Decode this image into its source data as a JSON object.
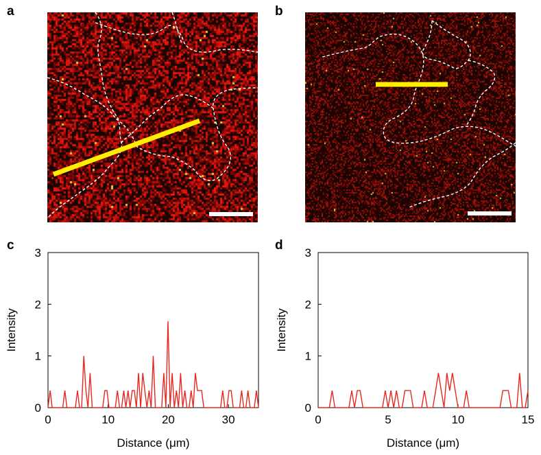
{
  "figure": {
    "panels": {
      "a": {
        "letter": "a"
      },
      "b": {
        "letter": "b"
      },
      "c": {
        "letter": "c"
      },
      "d": {
        "letter": "d"
      }
    }
  },
  "colors": {
    "image_background": "#1a0503",
    "image_signal": "#d0160c",
    "image_highlight": "#e8d040",
    "profile_line": "#ffee00",
    "scale_bar": "#ffffff",
    "boundary_dash": "#ffffff",
    "plot_line": "#e8261f",
    "axis": "#000000"
  },
  "chart_data": [
    {
      "panel": "c",
      "type": "line",
      "xlabel": "Distance (μm)",
      "ylabel": "Intensity",
      "xlim": [
        0,
        35
      ],
      "ylim": [
        0,
        3
      ],
      "xticks": [
        0,
        10,
        20,
        30
      ],
      "yticks": [
        0,
        1,
        2,
        3
      ],
      "grid": false,
      "series": [
        {
          "color": "#e8261f",
          "x": [
            0,
            0.35,
            0.7,
            1.05,
            1.4,
            1.75,
            2.1,
            2.45,
            2.8,
            3.15,
            3.5,
            3.85,
            4.2,
            4.55,
            4.9,
            5.25,
            5.6,
            5.95,
            6.3,
            6.65,
            7,
            7.35,
            7.7,
            8.05,
            8.4,
            8.75,
            9.1,
            9.45,
            9.8,
            10.15,
            10.5,
            10.85,
            11.2,
            11.55,
            11.9,
            12.25,
            12.6,
            12.95,
            13.3,
            13.65,
            14,
            14.35,
            14.7,
            15.05,
            15.4,
            15.75,
            16.1,
            16.45,
            16.8,
            17.15,
            17.5,
            17.85,
            18.2,
            18.55,
            18.9,
            19.25,
            19.6,
            19.95,
            20.3,
            20.65,
            21,
            21.35,
            21.7,
            22.05,
            22.4,
            22.75,
            23.1,
            23.45,
            23.8,
            24.15,
            24.5,
            24.85,
            25.2,
            25.55,
            25.9,
            26.25,
            26.6,
            26.95,
            27.3,
            27.65,
            28,
            28.35,
            28.7,
            29.05,
            29.4,
            29.75,
            30.1,
            30.45,
            30.8,
            31.15,
            31.5,
            31.85,
            32.2,
            32.55,
            32.9,
            33.25,
            33.6,
            33.95,
            34.3,
            34.65,
            35
          ],
          "y": [
            0,
            0.33,
            0,
            0,
            0,
            0,
            0,
            0,
            0.33,
            0,
            0,
            0,
            0,
            0,
            0.33,
            0,
            0,
            1.0,
            0.33,
            0,
            0.67,
            0,
            0,
            0,
            0,
            0,
            0,
            0.33,
            0.33,
            0,
            0,
            0,
            0,
            0.33,
            0,
            0,
            0.33,
            0,
            0.33,
            0,
            0.33,
            0.33,
            0,
            0.67,
            0,
            0.67,
            0.33,
            0,
            0.33,
            0,
            1.0,
            0,
            0,
            0,
            0,
            0.67,
            0,
            1.67,
            0,
            0.67,
            0,
            0.33,
            0,
            0.67,
            0,
            0.33,
            0,
            0,
            0.33,
            0,
            0.67,
            0.33,
            0.33,
            0.33,
            0,
            0,
            0,
            0,
            0,
            0,
            0,
            0,
            0,
            0.33,
            0,
            0,
            0.33,
            0.33,
            0,
            0,
            0,
            0,
            0.33,
            0,
            0,
            0.33,
            0,
            0,
            0,
            0.33,
            0
          ]
        }
      ]
    },
    {
      "panel": "d",
      "type": "line",
      "xlabel": "Distance (μm)",
      "ylabel": "Intensity",
      "xlim": [
        0,
        15
      ],
      "ylim": [
        0,
        3
      ],
      "xticks": [
        0,
        5,
        10,
        15
      ],
      "yticks": [
        0,
        1,
        2,
        3
      ],
      "grid": false,
      "series": [
        {
          "color": "#e8261f",
          "x": [
            0,
            0.2,
            0.4,
            0.6,
            0.8,
            1.0,
            1.2,
            1.4,
            1.6,
            1.8,
            2.0,
            2.2,
            2.4,
            2.6,
            2.8,
            3.0,
            3.2,
            3.4,
            3.6,
            3.8,
            4.0,
            4.2,
            4.4,
            4.6,
            4.8,
            5.0,
            5.2,
            5.4,
            5.6,
            5.8,
            6.0,
            6.2,
            6.4,
            6.6,
            6.8,
            7.0,
            7.2,
            7.4,
            7.6,
            7.8,
            8.0,
            8.2,
            8.4,
            8.6,
            8.8,
            9.0,
            9.2,
            9.4,
            9.6,
            9.8,
            10.0,
            10.2,
            10.4,
            10.6,
            10.8,
            11.0,
            11.2,
            11.4,
            11.6,
            11.8,
            12.0,
            12.2,
            12.4,
            12.6,
            12.8,
            13.0,
            13.2,
            13.4,
            13.6,
            13.8,
            14.0,
            14.2,
            14.4,
            14.6,
            14.8,
            15.0
          ],
          "y": [
            0,
            0,
            0,
            0,
            0,
            0.33,
            0,
            0,
            0,
            0,
            0,
            0,
            0.33,
            0,
            0.33,
            0.33,
            0,
            0,
            0,
            0,
            0,
            0,
            0,
            0,
            0.33,
            0,
            0.33,
            0,
            0.33,
            0,
            0,
            0.33,
            0.33,
            0.33,
            0,
            0,
            0,
            0,
            0.33,
            0,
            0,
            0,
            0.33,
            0.67,
            0.33,
            0,
            0.67,
            0.33,
            0.67,
            0.33,
            0,
            0,
            0,
            0.33,
            0,
            0,
            0,
            0,
            0,
            0,
            0,
            0,
            0,
            0,
            0,
            0,
            0.33,
            0.33,
            0.33,
            0,
            0,
            0,
            0.67,
            0,
            0,
            0.33
          ]
        }
      ]
    }
  ]
}
